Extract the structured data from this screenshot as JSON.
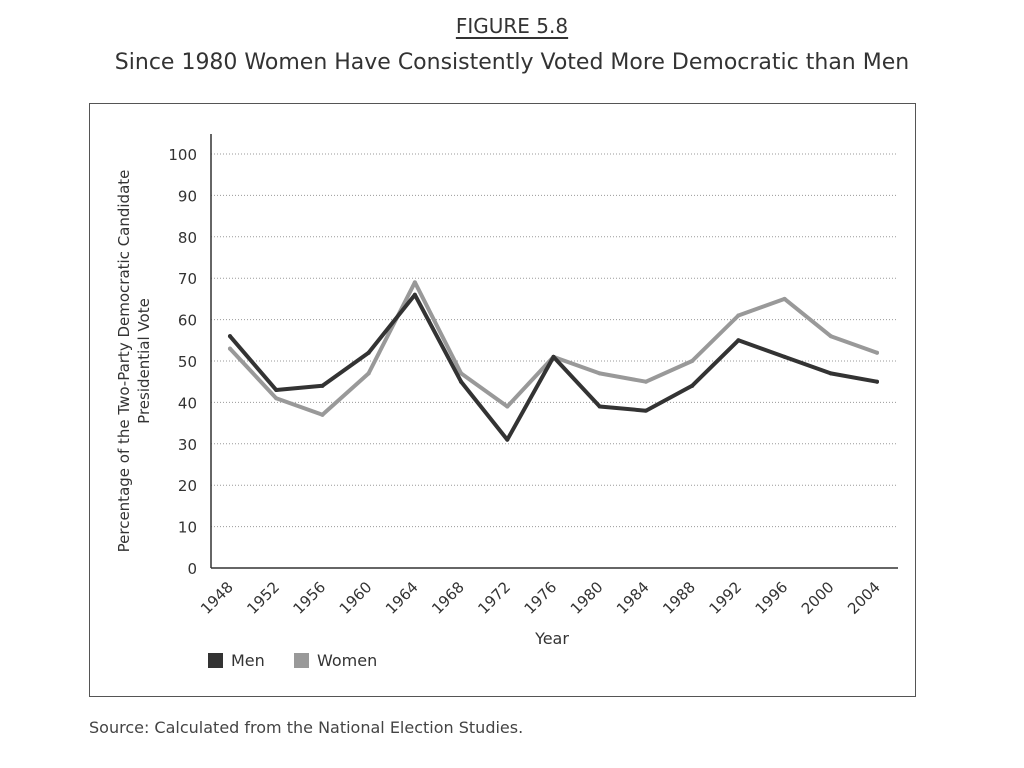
{
  "figure": {
    "label": "FIGURE 5.8",
    "title": "Since 1980 Women Have Consistently Voted More Democratic than Men",
    "source": "Source: Calculated from the National Election Studies."
  },
  "chart_data": {
    "type": "line",
    "title": "Since 1980 Women Have Consistently Voted More Democratic than Men",
    "xlabel": "Year",
    "ylabel": "Percentage of the Two-Party Democratic Candidate Presidential Vote",
    "ylabel_lines": [
      "Percentage of the Two-Party Democratic Candidate",
      "Presidential Vote"
    ],
    "x": [
      "1948",
      "1952",
      "1956",
      "1960",
      "1964",
      "1968",
      "1972",
      "1976",
      "1980",
      "1984",
      "1988",
      "1992",
      "1996",
      "2000",
      "2004"
    ],
    "ylim": [
      0,
      100
    ],
    "yticks": [
      0,
      10,
      20,
      30,
      40,
      50,
      60,
      70,
      80,
      90,
      100
    ],
    "grid": "horizontal dotted",
    "legend_position": "bottom-left",
    "series": [
      {
        "name": "Men",
        "color": "#333333",
        "values": [
          56,
          43,
          44,
          52,
          66,
          45,
          31,
          51,
          39,
          38,
          44,
          55,
          51,
          47,
          45
        ]
      },
      {
        "name": "Women",
        "color": "#999999",
        "values": [
          53,
          41,
          37,
          47,
          69,
          47,
          39,
          51,
          47,
          45,
          50,
          61,
          65,
          56,
          52
        ]
      }
    ]
  }
}
